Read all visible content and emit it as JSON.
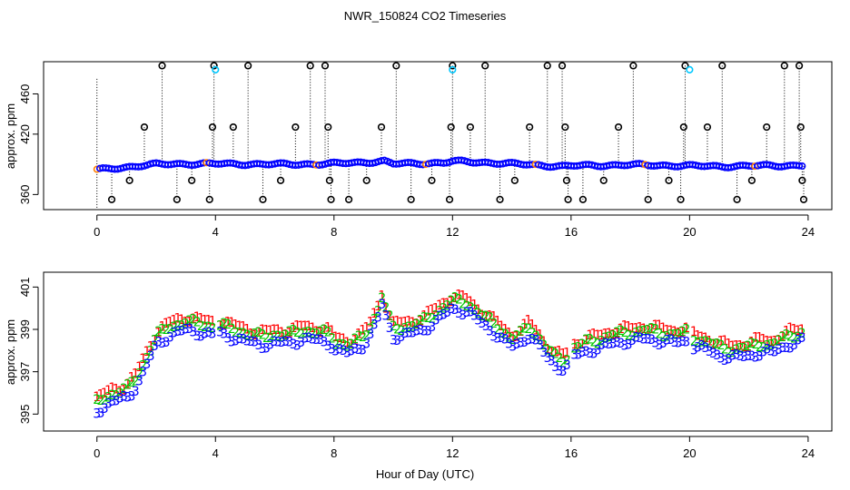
{
  "chart_data": [
    {
      "type": "scatter",
      "title": "NWR_150824  CO2 Timeseries",
      "xlabel": "",
      "ylabel": "approx. ppm",
      "xlim": [
        -1.8,
        24.8
      ],
      "ylim": [
        345,
        492
      ],
      "xticks": [
        0,
        4,
        8,
        12,
        16,
        20,
        24
      ],
      "xtick_labels": [
        "0",
        "4",
        "8",
        "12",
        "16",
        "20",
        "24"
      ],
      "yticks": [
        360,
        420,
        460
      ],
      "ytick_labels": [
        "360",
        "420",
        "460"
      ],
      "colors": {
        "baseline": "#0000ff",
        "flagged": "#000000",
        "cyan": "#00c8ff",
        "orange": "#ff7f00",
        "stem": "#000000"
      },
      "baseline_series": {
        "name": "baseline",
        "x": [
          0,
          2,
          3,
          4,
          6,
          7.7,
          9.7,
          10,
          11.7,
          12,
          13,
          15.7,
          16,
          18,
          20,
          21,
          23.8
        ],
        "y": [
          384.5,
          390,
          390.5,
          390.5,
          390,
          390.3,
          393,
          390.5,
          391.5,
          393,
          392,
          388,
          388.5,
          389.5,
          388.5,
          388,
          389
        ]
      },
      "flagged_points": {
        "name": "flagged",
        "x": [
          0.5,
          1.1,
          1.6,
          2.2,
          2.7,
          3.2,
          3.8,
          3.9,
          3.95,
          4.6,
          5.1,
          5.6,
          6.2,
          6.7,
          7.2,
          7.7,
          7.8,
          7.85,
          7.9,
          8.5,
          9.1,
          9.6,
          10.1,
          10.6,
          11.3,
          11.9,
          11.95,
          12.0,
          12.6,
          13.1,
          13.6,
          14.1,
          14.6,
          15.2,
          15.7,
          15.8,
          15.85,
          15.9,
          16.4,
          17.1,
          17.6,
          18.1,
          18.6,
          19.3,
          19.7,
          19.8,
          19.85,
          20.6,
          21.1,
          21.6,
          22.1,
          22.6,
          23.2,
          23.7,
          23.75,
          23.8,
          23.85
        ],
        "y": [
          355,
          374,
          427,
          488,
          355,
          374,
          355,
          427,
          488,
          427,
          488,
          355,
          374,
          427,
          488,
          488,
          427,
          374,
          355,
          355,
          374,
          427,
          488,
          355,
          374,
          355,
          427,
          488,
          427,
          488,
          355,
          374,
          427,
          488,
          488,
          427,
          374,
          355,
          355,
          374,
          427,
          488,
          355,
          374,
          355,
          427,
          488,
          427,
          488,
          355,
          374,
          427,
          488,
          488,
          427,
          374,
          355
        ]
      },
      "cyan_points": {
        "x": [
          4.0,
          12.0,
          20.0
        ],
        "y": [
          484,
          484,
          484
        ]
      }
    },
    {
      "type": "scatter",
      "title": "",
      "xlabel": "Hour of Day (UTC)",
      "ylabel": "approx. ppm",
      "xlim": [
        -1.8,
        24.8
      ],
      "ylim": [
        394.2,
        401.7
      ],
      "xticks": [
        0,
        4,
        8,
        12,
        16,
        20,
        24
      ],
      "xtick_labels": [
        "0",
        "4",
        "8",
        "12",
        "16",
        "20",
        "24"
      ],
      "yticks": [
        395,
        397,
        399,
        401
      ],
      "ytick_labels": [
        "395",
        "397",
        "399",
        "401"
      ],
      "series": [
        {
          "name": "1",
          "symbol": "1",
          "color": "#ff0000",
          "offset": 0.35
        },
        {
          "name": "2",
          "symbol": "2",
          "color": "#00c800",
          "offset": 0.15
        },
        {
          "name": "3",
          "symbol": "3",
          "color": "#0000ff",
          "offset": -0.25
        }
      ],
      "base_curve": {
        "x": [
          0,
          0.5,
          1.0,
          1.3,
          1.6,
          2.0,
          2.5,
          3.0,
          3.5,
          3.9,
          4.0,
          4.5,
          5.0,
          5.5,
          6.0,
          6.5,
          7.0,
          7.5,
          7.9,
          8.0,
          8.5,
          9.0,
          9.2,
          9.5,
          9.6,
          9.8,
          10.0,
          10.5,
          11.0,
          11.5,
          11.9,
          12.0,
          12.5,
          13.0,
          13.5,
          14.0,
          14.3,
          14.6,
          14.9,
          15.2,
          15.5,
          15.8,
          16.0,
          16.5,
          17.0,
          17.5,
          18.0,
          18.5,
          19.0,
          19.5,
          19.9,
          20.0,
          20.5,
          21.0,
          21.5,
          22.0,
          22.5,
          22.8,
          23.0,
          23.5,
          23.85
        ],
        "y": [
          395.4,
          395.8,
          396.0,
          396.5,
          397.3,
          398.5,
          399.0,
          399.2,
          399.1,
          399.0,
          399.1,
          398.9,
          398.7,
          398.5,
          398.6,
          398.6,
          398.8,
          398.7,
          398.6,
          398.3,
          398.1,
          398.5,
          398.9,
          399.8,
          400.5,
          399.6,
          398.9,
          399.0,
          399.2,
          399.7,
          400.1,
          400.2,
          400.1,
          399.5,
          399.0,
          398.4,
          398.6,
          399.0,
          398.5,
          397.9,
          397.5,
          397.4,
          397.9,
          398.2,
          398.4,
          398.6,
          398.7,
          398.8,
          398.7,
          398.6,
          398.7,
          398.5,
          398.3,
          398.0,
          397.9,
          398.0,
          398.2,
          398.1,
          398.3,
          398.6,
          398.7
        ]
      }
    }
  ],
  "footer": {
    "xlabel": "Hour of Day (UTC)"
  }
}
